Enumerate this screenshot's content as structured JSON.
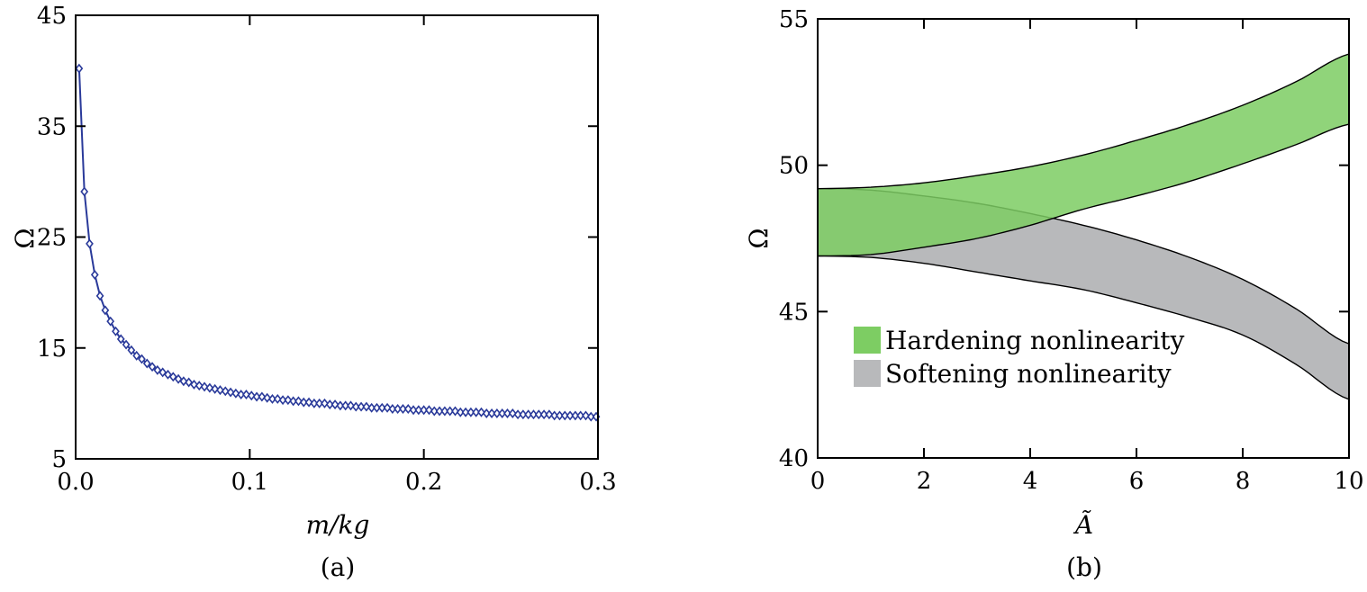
{
  "chart_data": [
    {
      "type": "line",
      "panel_label": "(a)",
      "title": "",
      "xlabel": "m/kg",
      "ylabel": "Ω",
      "xlim": [
        0.0,
        0.3
      ],
      "ylim": [
        5,
        45
      ],
      "x_ticks": [
        "0.0",
        "0.1",
        "0.2",
        "0.3"
      ],
      "y_ticks": [
        "5",
        "15",
        "25",
        "35",
        "45"
      ],
      "grid": false,
      "marker": "diamond",
      "color": "#2a3a9a",
      "series": [
        {
          "x": [
            0.002,
            0.005,
            0.008,
            0.011,
            0.014,
            0.017,
            0.02,
            0.023,
            0.026,
            0.029,
            0.032,
            0.035,
            0.038,
            0.041,
            0.044,
            0.047,
            0.05,
            0.053,
            0.056,
            0.059,
            0.062,
            0.065,
            0.068,
            0.071,
            0.074,
            0.077,
            0.08,
            0.083,
            0.086,
            0.089,
            0.092,
            0.095,
            0.098,
            0.101,
            0.104,
            0.107,
            0.11,
            0.113,
            0.116,
            0.119,
            0.122,
            0.125,
            0.128,
            0.131,
            0.134,
            0.137,
            0.14,
            0.143,
            0.146,
            0.149,
            0.152,
            0.155,
            0.158,
            0.161,
            0.164,
            0.167,
            0.17,
            0.173,
            0.176,
            0.179,
            0.182,
            0.185,
            0.188,
            0.191,
            0.194,
            0.197,
            0.2,
            0.203,
            0.206,
            0.209,
            0.212,
            0.215,
            0.218,
            0.221,
            0.224,
            0.227,
            0.23,
            0.233,
            0.236,
            0.239,
            0.242,
            0.245,
            0.248,
            0.251,
            0.254,
            0.257,
            0.26,
            0.263,
            0.266,
            0.269,
            0.272,
            0.275,
            0.278,
            0.281,
            0.284,
            0.287,
            0.29,
            0.293,
            0.296,
            0.299
          ],
          "y": [
            40.2,
            29.1,
            24.4,
            21.6,
            19.7,
            18.4,
            17.4,
            16.5,
            15.8,
            15.3,
            14.8,
            14.3,
            14.0,
            13.6,
            13.3,
            13.0,
            12.8,
            12.6,
            12.4,
            12.2,
            12.0,
            11.9,
            11.7,
            11.6,
            11.5,
            11.4,
            11.3,
            11.2,
            11.1,
            11.0,
            10.9,
            10.8,
            10.8,
            10.7,
            10.6,
            10.6,
            10.5,
            10.4,
            10.4,
            10.3,
            10.3,
            10.2,
            10.2,
            10.1,
            10.1,
            10.0,
            10.0,
            10.0,
            9.9,
            9.9,
            9.8,
            9.8,
            9.8,
            9.7,
            9.7,
            9.7,
            9.6,
            9.6,
            9.6,
            9.6,
            9.5,
            9.5,
            9.5,
            9.5,
            9.4,
            9.4,
            9.4,
            9.4,
            9.3,
            9.3,
            9.3,
            9.3,
            9.3,
            9.2,
            9.2,
            9.2,
            9.2,
            9.2,
            9.1,
            9.1,
            9.1,
            9.1,
            9.1,
            9.1,
            9.0,
            9.0,
            9.0,
            9.0,
            9.0,
            9.0,
            9.0,
            8.9,
            8.9,
            8.9,
            8.9,
            8.9,
            8.9,
            8.9,
            8.8,
            8.8
          ]
        }
      ]
    },
    {
      "type": "area",
      "panel_label": "(b)",
      "title": "",
      "xlabel": "Ã",
      "ylabel": "Ω",
      "xlim": [
        0,
        10
      ],
      "ylim": [
        40,
        55
      ],
      "x_ticks": [
        "0",
        "2",
        "4",
        "6",
        "8",
        "10"
      ],
      "y_ticks": [
        "40",
        "45",
        "50",
        "55"
      ],
      "grid": false,
      "legend_position": "lower-left",
      "series": [
        {
          "name": "Hardening nonlinearity",
          "color": "#7dcd63",
          "x": [
            0,
            1,
            2,
            3,
            4,
            5,
            6,
            7,
            8,
            9,
            10
          ],
          "upper": [
            49.2,
            49.25,
            49.4,
            49.65,
            49.95,
            50.35,
            50.85,
            51.4,
            52.05,
            52.85,
            53.8
          ],
          "lower": [
            46.9,
            46.95,
            47.2,
            47.5,
            47.95,
            48.5,
            48.95,
            49.45,
            50.05,
            50.7,
            51.4
          ]
        },
        {
          "name": "Softening nonlinearity",
          "color": "#b8b9bb",
          "x": [
            0,
            1,
            2,
            3,
            4,
            5,
            6,
            7,
            8,
            9,
            10
          ],
          "upper": [
            49.2,
            49.15,
            48.95,
            48.7,
            48.35,
            47.95,
            47.45,
            46.85,
            46.1,
            45.1,
            43.9
          ],
          "lower": [
            46.9,
            46.85,
            46.65,
            46.35,
            46.05,
            45.75,
            45.3,
            44.8,
            44.2,
            43.2,
            42.0
          ]
        }
      ]
    }
  ]
}
